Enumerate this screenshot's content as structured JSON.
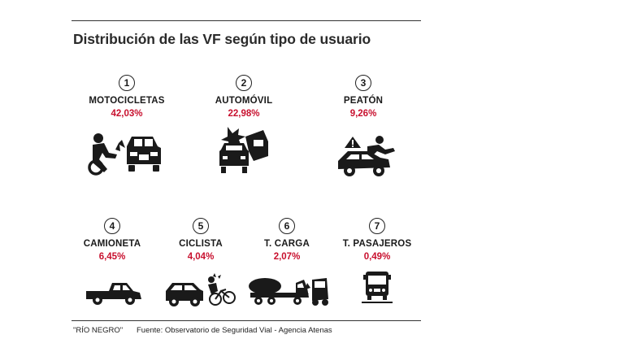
{
  "chart_data": {
    "type": "table",
    "title": "Distribución de las VF según tipo de usuario",
    "items": [
      {
        "rank": "1",
        "label": "MOTOCICLETAS",
        "value_text": "42,03%",
        "value": 42.03,
        "icon": "motorcycle-crash-icon"
      },
      {
        "rank": "2",
        "label": "AUTOMÓVIL",
        "value_text": "22,98%",
        "value": 22.98,
        "icon": "car-collision-icon"
      },
      {
        "rank": "3",
        "label": "PEATÓN",
        "value_text": "9,26%",
        "value": 9.26,
        "icon": "pedestrian-struck-icon"
      },
      {
        "rank": "4",
        "label": "CAMIONETA",
        "value_text": "6,45%",
        "value": 6.45,
        "icon": "pickup-truck-icon"
      },
      {
        "rank": "5",
        "label": "CICLISTA",
        "value_text": "4,04%",
        "value": 4.04,
        "icon": "cyclist-struck-icon"
      },
      {
        "rank": "6",
        "label": "T. CARGA",
        "value_text": "2,07%",
        "value": 2.07,
        "icon": "cargo-truck-crash-icon"
      },
      {
        "rank": "7",
        "label": "T. PASAJEROS",
        "value_text": "0,49%",
        "value": 0.49,
        "icon": "bus-icon"
      }
    ]
  },
  "footer": {
    "credit": "\"RÍO NEGRO\"",
    "source": "Fuente: Observatorio de Seguridad Vial - Agencia Atenas"
  },
  "colors": {
    "value": "#c8102e",
    "text": "#1a1a1a"
  }
}
